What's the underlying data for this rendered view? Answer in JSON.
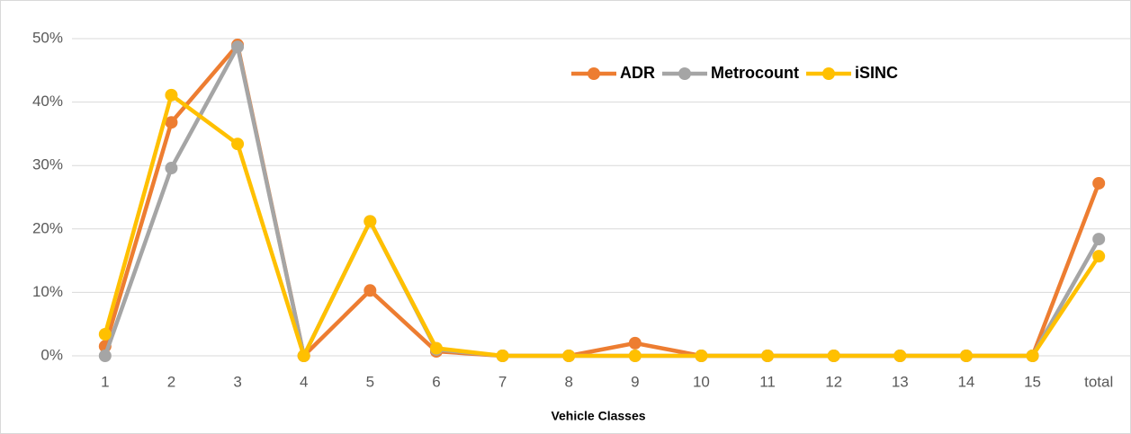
{
  "chart_data": {
    "type": "line",
    "x_label": "Vehicle Classes",
    "categories": [
      "1",
      "2",
      "3",
      "4",
      "5",
      "6",
      "7",
      "8",
      "9",
      "10",
      "11",
      "12",
      "13",
      "14",
      "15",
      "total"
    ],
    "series": [
      {
        "name": "ADR",
        "color": "#ed7d31",
        "values": [
          1.5,
          36.8,
          49.0,
          0,
          10.3,
          0.7,
          0,
          0,
          2.0,
          0,
          0,
          0,
          0,
          0,
          0,
          27.2
        ]
      },
      {
        "name": "Metrocount",
        "color": "#a5a5a5",
        "values": [
          0,
          29.6,
          48.7,
          0,
          21.2,
          1.0,
          0,
          0,
          0,
          0,
          0,
          0,
          0,
          0,
          0,
          18.4
        ]
      },
      {
        "name": "iSINC",
        "color": "#ffc000",
        "values": [
          3.4,
          41.1,
          33.4,
          0,
          21.2,
          1.2,
          0,
          0,
          0,
          0,
          0,
          0,
          0,
          0,
          0,
          15.7
        ]
      }
    ],
    "ylim": [
      0,
      50
    ],
    "yticks": [
      {
        "value": 0,
        "label": "0%"
      },
      {
        "value": 10,
        "label": "10%"
      },
      {
        "value": 20,
        "label": "20%"
      },
      {
        "value": 30,
        "label": "30%"
      },
      {
        "value": 40,
        "label": "40%"
      },
      {
        "value": 50,
        "label": "50%"
      }
    ],
    "grid": true,
    "legend": "top"
  }
}
